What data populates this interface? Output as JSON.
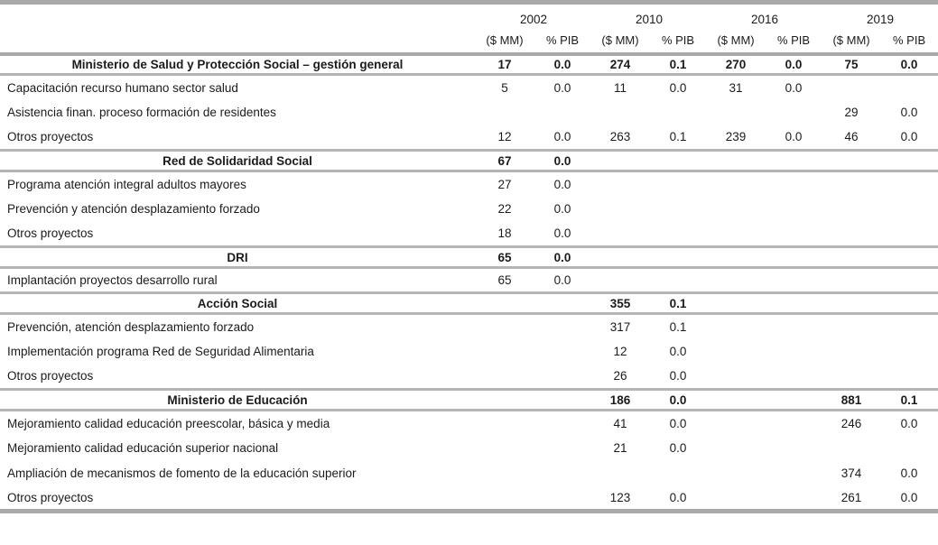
{
  "colors": {
    "line": "#b5b5b5",
    "line_strong": "#a9a9a9",
    "text": "#1b1b1b"
  },
  "table": {
    "year_groups": [
      {
        "year": "2002",
        "amount_label": "($ MM)",
        "pib_label": "% PIB"
      },
      {
        "year": "2010",
        "amount_label": "($ MM)",
        "pib_label": "% PIB"
      },
      {
        "year": "2016",
        "amount_label": "($ MM)",
        "pib_label": "% PIB"
      },
      {
        "year": "2019",
        "amount_label": "($ MM)",
        "pib_label": "% PIB"
      }
    ],
    "rows": [
      {
        "type": "section",
        "label": "Ministerio de Salud y Protección Social – gestión general",
        "values": [
          "17",
          "0.0",
          "274",
          "0.1",
          "270",
          "0.0",
          "75",
          "0.0"
        ]
      },
      {
        "type": "item",
        "label": "Capacitación recurso humano sector salud",
        "values": [
          "5",
          "0.0",
          "11",
          "0.0",
          "31",
          "0.0",
          "",
          ""
        ]
      },
      {
        "type": "item",
        "label": "Asistencia finan. proceso formación de residentes",
        "values": [
          "",
          "",
          "",
          "",
          "",
          "",
          "29",
          "0.0"
        ]
      },
      {
        "type": "item",
        "label": "Otros proyectos",
        "values": [
          "12",
          "0.0",
          "263",
          "0.1",
          "239",
          "0.0",
          "46",
          "0.0"
        ]
      },
      {
        "type": "section",
        "label": "Red de Solidaridad Social",
        "values": [
          "67",
          "0.0",
          "",
          "",
          "",
          "",
          "",
          ""
        ]
      },
      {
        "type": "item",
        "label": "Programa atención integral adultos mayores",
        "values": [
          "27",
          "0.0",
          "",
          "",
          "",
          "",
          "",
          ""
        ]
      },
      {
        "type": "item",
        "label": "Prevención y atención desplazamiento forzado",
        "values": [
          "22",
          "0.0",
          "",
          "",
          "",
          "",
          "",
          ""
        ]
      },
      {
        "type": "item",
        "label": "Otros proyectos",
        "values": [
          "18",
          "0.0",
          "",
          "",
          "",
          "",
          "",
          ""
        ]
      },
      {
        "type": "section",
        "label": "DRI",
        "values": [
          "65",
          "0.0",
          "",
          "",
          "",
          "",
          "",
          ""
        ]
      },
      {
        "type": "item",
        "label": "Implantación proyectos desarrollo rural",
        "values": [
          "65",
          "0.0",
          "",
          "",
          "",
          "",
          "",
          ""
        ]
      },
      {
        "type": "section",
        "label": "Acción Social",
        "values": [
          "",
          "",
          "355",
          "0.1",
          "",
          "",
          "",
          ""
        ]
      },
      {
        "type": "item",
        "label": "Prevención, atención desplazamiento forzado",
        "values": [
          "",
          "",
          "317",
          "0.1",
          "",
          "",
          "",
          ""
        ]
      },
      {
        "type": "item",
        "label": "Implementación programa Red de Seguridad Alimentaria",
        "values": [
          "",
          "",
          "12",
          "0.0",
          "",
          "",
          "",
          ""
        ]
      },
      {
        "type": "item",
        "label": "Otros proyectos",
        "values": [
          "",
          "",
          "26",
          "0.0",
          "",
          "",
          "",
          ""
        ]
      },
      {
        "type": "section",
        "label": "Ministerio de Educación",
        "values": [
          "",
          "",
          "186",
          "0.0",
          "",
          "",
          "881",
          "0.1"
        ]
      },
      {
        "type": "item",
        "label": "Mejoramiento calidad educación preescolar, básica y media",
        "values": [
          "",
          "",
          "41",
          "0.0",
          "",
          "",
          "246",
          "0.0"
        ]
      },
      {
        "type": "item",
        "label": "Mejoramiento calidad educación superior nacional",
        "values": [
          "",
          "",
          "21",
          "0.0",
          "",
          "",
          "",
          ""
        ]
      },
      {
        "type": "item",
        "label": "Ampliación de mecanismos de fomento de la educación superior",
        "values": [
          "",
          "",
          "",
          "",
          "",
          "",
          "374",
          "0.0"
        ]
      },
      {
        "type": "item",
        "label": "Otros proyectos",
        "values": [
          "",
          "",
          "123",
          "0.0",
          "",
          "",
          "261",
          "0.0"
        ]
      }
    ]
  }
}
